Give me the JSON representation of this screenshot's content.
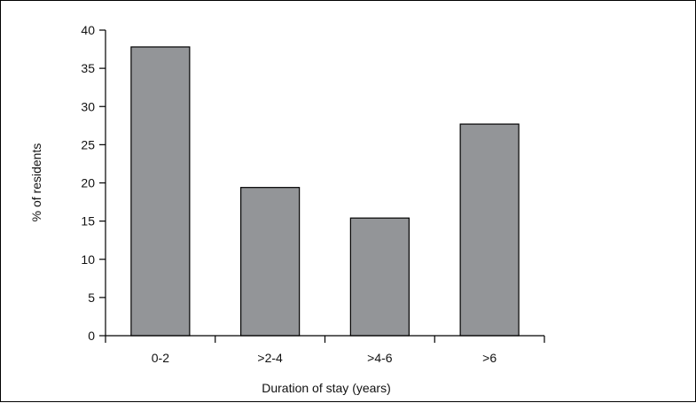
{
  "chart_data": {
    "type": "bar",
    "title": "",
    "xlabel": "Duration of stay (years)",
    "ylabel": "% of residents",
    "categories": [
      "0-2",
      ">2-4",
      ">4-6",
      ">6"
    ],
    "values": [
      37.8,
      19.4,
      15.4,
      27.7
    ],
    "ylim": [
      0,
      40
    ],
    "yticks": [
      "0",
      "5",
      "10",
      "15",
      "20",
      "25",
      "30",
      "35",
      "40"
    ],
    "grid": false,
    "legend": "none",
    "colors": {
      "bar_fill": "#939598",
      "bar_stroke": "#000000",
      "axis": "#000000"
    }
  }
}
